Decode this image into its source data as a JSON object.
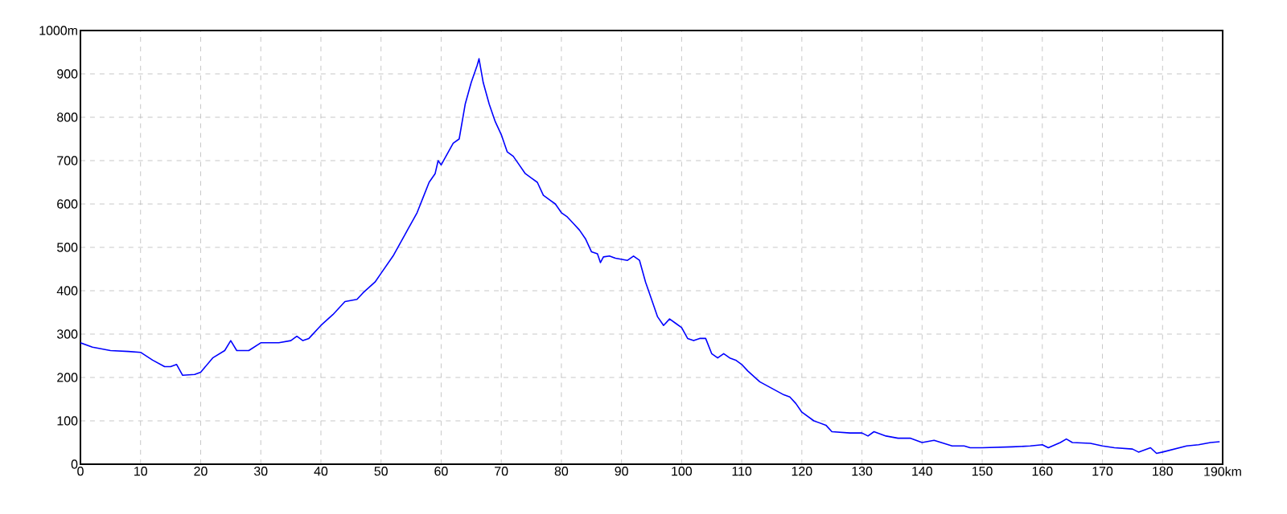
{
  "chart_data": {
    "type": "line",
    "color": "#0000ff",
    "grid": true,
    "marker": "none",
    "line_style": "solid",
    "xlim": [
      0,
      190
    ],
    "ylim": [
      0,
      1000
    ],
    "xticks": [
      0,
      10,
      20,
      30,
      40,
      50,
      60,
      70,
      80,
      90,
      100,
      110,
      120,
      130,
      140,
      150,
      160,
      170,
      180,
      {
        "value": 190,
        "label": "190km"
      }
    ],
    "yticks": [
      0,
      100,
      200,
      300,
      400,
      500,
      600,
      700,
      800,
      900,
      {
        "value": 1000,
        "label": "1000m"
      }
    ],
    "x": [
      0,
      2,
      5,
      8,
      10,
      12,
      14,
      15,
      16,
      17,
      19,
      20,
      22,
      24,
      25,
      26,
      28,
      30,
      33,
      35,
      36,
      37,
      38,
      40,
      42,
      44,
      46,
      47,
      49,
      50,
      52,
      54,
      56,
      57,
      58,
      59,
      59.5,
      60,
      61,
      62,
      63,
      64,
      65,
      66,
      66.3,
      67,
      68,
      69,
      70,
      71,
      72,
      73,
      74,
      75,
      76,
      77,
      78,
      79,
      80,
      81,
      82,
      83,
      84,
      85,
      86,
      86.5,
      87,
      88,
      89,
      91,
      92,
      93,
      94,
      95,
      96,
      97,
      98,
      99,
      100,
      101,
      102,
      103,
      104,
      105,
      106,
      107,
      108,
      109,
      110,
      111,
      113,
      115,
      117,
      118,
      119,
      120,
      122,
      124,
      125,
      128,
      130,
      131,
      132,
      134,
      136,
      138,
      140,
      142,
      145,
      147,
      148,
      150,
      155,
      158,
      160,
      161,
      163,
      164,
      165,
      168,
      170,
      172,
      175,
      176,
      178,
      179,
      180,
      182,
      184,
      186,
      188,
      189.5
    ],
    "values": [
      280,
      270,
      262,
      260,
      258,
      240,
      225,
      225,
      230,
      205,
      207,
      212,
      245,
      262,
      285,
      262,
      262,
      280,
      280,
      285,
      295,
      285,
      290,
      320,
      345,
      375,
      380,
      395,
      420,
      440,
      480,
      530,
      580,
      615,
      650,
      670,
      700,
      690,
      715,
      740,
      750,
      830,
      880,
      920,
      935,
      880,
      830,
      790,
      760,
      720,
      710,
      690,
      670,
      660,
      650,
      620,
      610,
      600,
      580,
      570,
      555,
      540,
      520,
      490,
      485,
      465,
      478,
      480,
      475,
      470,
      480,
      470,
      420,
      380,
      340,
      320,
      335,
      325,
      315,
      290,
      285,
      290,
      290,
      255,
      245,
      255,
      245,
      240,
      230,
      215,
      190,
      175,
      160,
      155,
      140,
      120,
      100,
      90,
      75,
      72,
      72,
      65,
      75,
      65,
      60,
      60,
      50,
      55,
      42,
      42,
      38,
      38,
      40,
      42,
      45,
      38,
      50,
      58,
      50,
      48,
      42,
      38,
      35,
      28,
      38,
      25,
      28,
      35,
      42,
      45,
      50,
      52
    ]
  }
}
